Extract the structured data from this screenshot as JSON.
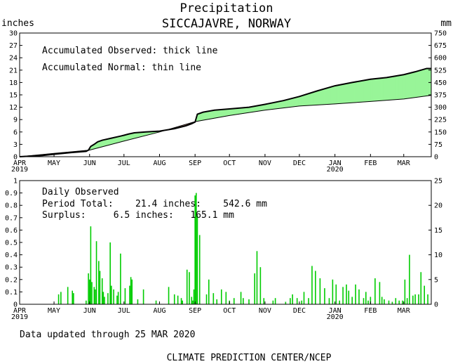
{
  "title": "Precipitation",
  "subtitle": "SICCAJAVRE, NORWAY",
  "left_unit": "inches",
  "right_unit": "mm",
  "top_panel": {
    "note1": "Accumulated Observed: thick line",
    "note2": "Accumulated Normal: thin line"
  },
  "bottom_panel": {
    "heading": "Daily Observed",
    "period_line": "Period Total:    21.4 inches:    542.6 mm",
    "surplus_line": "Surplus:     6.5 inches:   165.1 mm"
  },
  "updated": "Data updated through 25 MAR 2020",
  "credit": "CLIMATE PREDICTION CENTER/NCEP",
  "colors": {
    "surplus_fill": "#98f598",
    "deficit_fill": "#b8867a",
    "bars": "#00cc00"
  },
  "chart_data": [
    {
      "type": "area",
      "x_unit": "days from 1 APR 2019",
      "xlim": [
        0,
        359
      ],
      "ylim": [
        0,
        30
      ],
      "ylim_right_mm": [
        0,
        750
      ],
      "y_ticks": [
        0,
        3,
        6,
        9,
        12,
        15,
        18,
        21,
        24,
        27,
        30
      ],
      "y_ticks_right": [
        0,
        75,
        150,
        225,
        300,
        375,
        450,
        525,
        600,
        675,
        750
      ],
      "x_ticks": [
        {
          "day": 0,
          "label": "APR",
          "year": "2019"
        },
        {
          "day": 30,
          "label": "MAY",
          "year": ""
        },
        {
          "day": 61,
          "label": "JUN",
          "year": ""
        },
        {
          "day": 91,
          "label": "JUL",
          "year": ""
        },
        {
          "day": 122,
          "label": "AUG",
          "year": ""
        },
        {
          "day": 153,
          "label": "SEP",
          "year": ""
        },
        {
          "day": 183,
          "label": "OCT",
          "year": ""
        },
        {
          "day": 214,
          "label": "NOV",
          "year": ""
        },
        {
          "day": 244,
          "label": "DEC",
          "year": ""
        },
        {
          "day": 275,
          "label": "JAN",
          "year": "2020"
        },
        {
          "day": 306,
          "label": "FEB",
          "year": ""
        },
        {
          "day": 335,
          "label": "MAR",
          "year": ""
        }
      ],
      "series": [
        {
          "role": "observed",
          "x": [
            0,
            20,
            30,
            45,
            58,
            60,
            62,
            65,
            68,
            72,
            80,
            88,
            91,
            95,
            100,
            110,
            122,
            135,
            145,
            150,
            153,
            155,
            160,
            170,
            183,
            200,
            214,
            230,
            244,
            260,
            275,
            290,
            306,
            320,
            335,
            345,
            355,
            359
          ],
          "y": [
            0,
            0.3,
            0.6,
            1.0,
            1.3,
            1.6,
            2.5,
            3.0,
            3.6,
            4.0,
            4.5,
            5.0,
            5.2,
            5.5,
            5.8,
            6.0,
            6.2,
            6.8,
            7.5,
            8.0,
            8.4,
            10.3,
            10.8,
            11.3,
            11.6,
            12.0,
            12.7,
            13.6,
            14.6,
            16.0,
            17.2,
            18.0,
            18.8,
            19.2,
            19.9,
            20.6,
            21.4,
            21.4
          ]
        },
        {
          "role": "normal",
          "x": [
            0,
            30,
            61,
            91,
            122,
            153,
            183,
            214,
            244,
            275,
            306,
            335,
            359
          ],
          "y": [
            0,
            0.8,
            1.6,
            3.8,
            6.0,
            8.5,
            10.0,
            11.3,
            12.3,
            12.8,
            13.4,
            14.0,
            14.9
          ]
        }
      ]
    },
    {
      "type": "bar",
      "x_unit": "days from 1 APR 2019",
      "ylim": [
        0,
        1
      ],
      "ylim_right_mm": [
        0,
        25
      ],
      "y_ticks": [
        0,
        0.1,
        0.2,
        0.3,
        0.4,
        0.5,
        0.6,
        0.7,
        0.8,
        0.9,
        1
      ],
      "y_tick_labels": [
        "0",
        "0.1",
        "0.2",
        "0.3",
        "0.4",
        "0.5",
        "0.6",
        "0.7",
        "0.8",
        "0.9",
        "1"
      ],
      "y_ticks_right": [
        0,
        5,
        10,
        15,
        20,
        25
      ],
      "series": [
        {
          "name": "Daily Observed",
          "x": [
            34,
            36,
            42,
            46,
            47,
            58,
            60,
            61,
            62,
            63,
            65,
            66,
            67,
            69,
            70,
            72,
            73,
            74,
            77,
            79,
            80,
            82,
            85,
            86,
            88,
            92,
            96,
            97,
            98,
            103,
            108,
            119,
            130,
            135,
            138,
            141,
            142,
            146,
            148,
            150,
            151,
            152,
            153,
            154,
            155,
            157,
            163,
            165,
            169,
            172,
            176,
            180,
            183,
            187,
            193,
            195,
            200,
            205,
            207,
            210,
            213,
            221,
            223,
            232,
            236,
            238,
            242,
            246,
            248,
            252,
            255,
            258,
            262,
            266,
            270,
            273,
            276,
            279,
            282,
            285,
            287,
            290,
            293,
            296,
            300,
            302,
            304,
            306,
            310,
            314,
            316,
            318,
            322,
            325,
            328,
            331,
            334,
            336,
            338,
            340,
            343,
            345,
            348,
            350,
            353,
            356
          ],
          "values": [
            0.08,
            0.1,
            0.14,
            0.11,
            0.09,
            0.03,
            0.25,
            0.2,
            0.63,
            0.18,
            0.14,
            0.12,
            0.51,
            0.35,
            0.27,
            0.21,
            0.1,
            0.06,
            0.09,
            0.5,
            0.15,
            0.12,
            0.07,
            0.1,
            0.41,
            0.13,
            0.15,
            0.22,
            0.2,
            0.04,
            0.12,
            0.03,
            0.14,
            0.08,
            0.07,
            0.05,
            0.03,
            0.28,
            0.26,
            0.06,
            0.03,
            0.12,
            0.88,
            0.9,
            0.72,
            0.56,
            0.08,
            0.2,
            0.09,
            0.04,
            0.12,
            0.1,
            0.03,
            0.05,
            0.1,
            0.05,
            0.04,
            0.25,
            0.43,
            0.3,
            0.05,
            0.03,
            0.05,
            0.02,
            0.05,
            0.08,
            0.05,
            0.03,
            0.1,
            0.05,
            0.31,
            0.27,
            0.21,
            0.13,
            0.05,
            0.2,
            0.16,
            0.03,
            0.14,
            0.16,
            0.11,
            0.06,
            0.16,
            0.12,
            0.05,
            0.1,
            0.03,
            0.06,
            0.21,
            0.18,
            0.06,
            0.04,
            0.03,
            0.02,
            0.05,
            0.03,
            0.03,
            0.2,
            0.05,
            0.4,
            0.07,
            0.08,
            0.08,
            0.26,
            0.15,
            0.08
          ]
        }
      ]
    }
  ]
}
